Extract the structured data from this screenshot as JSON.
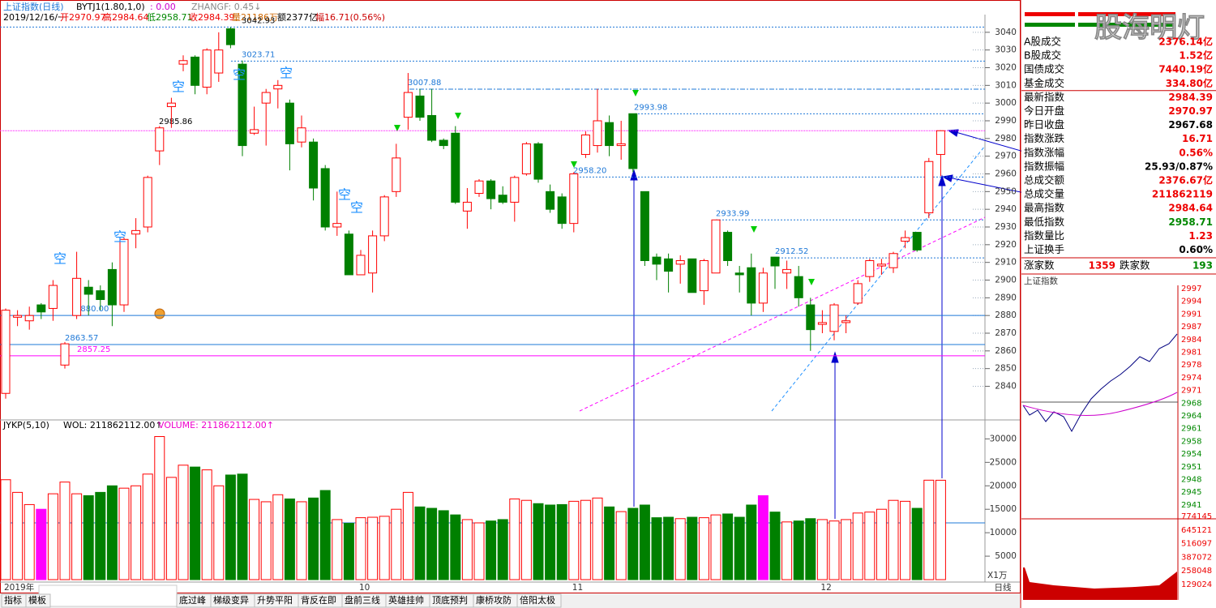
{
  "header": {
    "title": "上证指数(日线)",
    "indicator": "BYTJ1(1.80,1,0)",
    "indicator_value": ": 0.00",
    "zhangf": "ZHANGF: 0.45↓",
    "date": "2019/12/16/一",
    "open": "开2970.97",
    "high": "高2984.64",
    "low": "低2958.71",
    "close": "收2984.39",
    "volume": "量21186万",
    "amount": "额2377亿",
    "change": "幅16.71(0.56%)"
  },
  "volume_header": {
    "indicator": "JYKP(5,10)",
    "wol": "WOL: 211862112.00↑",
    "volume": "VOLUME: 211862112.00↑"
  },
  "chart_data": [
    {
      "type": "candlestick",
      "title": "上证指数",
      "signal_text": "空",
      "up_color": "#ff0000",
      "down_color": "#008000",
      "categories": [
        "2019年",
        null,
        null,
        null,
        null,
        null,
        null,
        null,
        null,
        null,
        null,
        null,
        null,
        null,
        null,
        null,
        null,
        null,
        null,
        null,
        null,
        null,
        null,
        null,
        null,
        null,
        null,
        null,
        null,
        null,
        "10",
        null,
        null,
        null,
        null,
        null,
        null,
        null,
        null,
        null,
        null,
        null,
        null,
        null,
        null,
        null,
        null,
        null,
        "11",
        null,
        null,
        null,
        null,
        null,
        null,
        null,
        null,
        null,
        null,
        null,
        null,
        null,
        null,
        null,
        null,
        null,
        null,
        null,
        null,
        "12",
        null,
        null,
        null,
        null,
        null,
        null,
        null,
        null,
        null,
        null
      ],
      "open": [
        2836,
        2879,
        2877,
        2886,
        2884,
        2852,
        2880,
        2896,
        2894,
        2906,
        2886,
        2926,
        2930,
        2973,
        2998,
        3022,
        3026,
        3009,
        3017,
        3042,
        3022,
        2983,
        3000,
        3008,
        3000,
        2978,
        2978,
        2963,
        2930,
        2926,
        2903,
        2904,
        2925,
        2950,
        2992,
        3004,
        2993,
        2979,
        2983,
        2939,
        2949,
        2956,
        2948,
        2944,
        2960,
        2977,
        2950,
        2947,
        2932,
        2971,
        2976,
        2989,
        2976,
        2994,
        2950,
        2913,
        2912,
        2909,
        2912,
        2894,
        2904,
        2927,
        2904,
        2907,
        2887,
        2913,
        2904,
        2902,
        2886,
        2875,
        2871,
        2876,
        2887,
        2902,
        2908,
        2907,
        2922,
        2927,
        2938,
        2970.97
      ],
      "high": [
        2884,
        2883,
        2885,
        2887,
        2900,
        2865,
        2916,
        2900,
        2897,
        2910,
        2924,
        2935,
        2959,
        2987,
        3003,
        3027,
        3027,
        3031,
        3040,
        3042.93,
        3024,
        2998,
        3008,
        3013,
        3002,
        2993,
        2980,
        2965,
        2950,
        2928,
        2917,
        2928,
        2948,
        2977,
        3017,
        3008,
        3008,
        2980,
        2987,
        2952,
        2957,
        2957,
        2953,
        2959,
        2978,
        2978,
        2954,
        2949,
        2961,
        2984,
        3008,
        2993,
        2990,
        2994,
        2950,
        2915,
        2915,
        2914,
        2912,
        2912,
        2934,
        2928,
        2908,
        2915,
        2907,
        2913,
        2911,
        2908,
        2890,
        2883,
        2887,
        2880,
        2900,
        2912,
        2912,
        2916,
        2928,
        2927,
        2969,
        2984.64
      ],
      "low": [
        2833,
        2874,
        2872,
        2878,
        2877,
        2850,
        2878,
        2880,
        2883,
        2874,
        2882,
        2918,
        2927,
        2965,
        2986,
        3018,
        3005,
        3005,
        3012,
        3031,
        2970,
        2982,
        2976,
        2997,
        2962,
        2975,
        2945,
        2928,
        2925,
        2903,
        2903,
        2893,
        2922,
        2947,
        2985,
        2990,
        2978,
        2974,
        2943,
        2929,
        2947,
        2940,
        2943,
        2933,
        2959,
        2955,
        2938,
        2929,
        2927,
        2969,
        2972,
        2970,
        2968,
        2961,
        2908,
        2900,
        2893,
        2898,
        2893,
        2886,
        2904,
        2908,
        2893,
        2880,
        2882,
        2895,
        2895,
        2885,
        2860,
        2870,
        2866,
        2870,
        2886,
        2899,
        2903,
        2904,
        2918,
        2916,
        2935,
        2958.71
      ],
      "close": [
        2883,
        2880,
        2880,
        2882,
        2897,
        2864,
        2901,
        2892,
        2889,
        2886,
        2923,
        2928,
        2958,
        2986,
        3000,
        3024,
        3010,
        3030,
        3030,
        3033,
        2976,
        2985,
        3006,
        3010,
        2977,
        2986,
        2952,
        2930,
        2932,
        2903,
        2914,
        2925,
        2947,
        2969,
        3006,
        2992,
        2979,
        2976,
        2944,
        2944,
        2956,
        2946,
        2944,
        2958,
        2977,
        2957,
        2940,
        2932,
        2960,
        2982,
        2990,
        2976,
        2977,
        2963,
        2911,
        2909,
        2905,
        2911,
        2893,
        2911,
        2934,
        2911,
        2903,
        2887,
        2904,
        2908,
        2906,
        2890,
        2872,
        2876,
        2886,
        2877,
        2898,
        2911,
        2909,
        2915,
        2924,
        2917,
        2967,
        2984.39
      ],
      "ylim": [
        2821,
        3050
      ],
      "yticks": [
        2840,
        2850,
        2860,
        2870,
        2880,
        2890,
        2900,
        2910,
        2920,
        2930,
        2940,
        2950,
        2960,
        2970,
        2980,
        2990,
        3000,
        3010,
        3020,
        3030,
        3040
      ],
      "levels": [
        {
          "value": 3042.93,
          "label": "3042.93",
          "color": "#000000"
        },
        {
          "value": 3023.71,
          "label": "3023.71",
          "color": "#1e78d7"
        },
        {
          "value": 3007.88,
          "label": "3007.88",
          "color": "#1e78d7"
        },
        {
          "value": 2993.98,
          "label": "2993.98",
          "color": "#1e78d7"
        },
        {
          "value": 2985.86,
          "label": "2985.86",
          "color": "#000000"
        },
        {
          "value": 2958.2,
          "label": "2958.20",
          "color": "#1e78d7"
        },
        {
          "value": 2933.99,
          "label": "2933.99",
          "color": "#1e78d7"
        },
        {
          "value": 2912.52,
          "label": "2912.52",
          "color": "#1e78d7"
        },
        {
          "value": 2880,
          "label": "2880.00",
          "color": "#1e78d7"
        },
        {
          "value": 2863.57,
          "label": "2863.57",
          "color": "#1e78d7"
        },
        {
          "value": 2857.25,
          "label": "2857.25",
          "color": "#ff00ff"
        }
      ]
    },
    {
      "type": "bar",
      "up_color": "#ff0000",
      "down_color": "#008000",
      "highlight": [
        3,
        64
      ],
      "highlight_color": "#ff00ff",
      "unit_label": "X1万",
      "values": [
        21300,
        18600,
        16000,
        15000,
        18300,
        20800,
        18300,
        17900,
        18600,
        20000,
        19500,
        20000,
        22500,
        30500,
        21800,
        24400,
        24000,
        23400,
        20000,
        22300,
        22500,
        17100,
        16600,
        18100,
        17200,
        16600,
        17400,
        19000,
        12800,
        12000,
        13200,
        13300,
        13500,
        15000,
        18600,
        15500,
        15200,
        14700,
        13800,
        12800,
        12100,
        12500,
        12800,
        17200,
        16900,
        16200,
        15900,
        16000,
        16700,
        16900,
        17400,
        15500,
        14500,
        15200,
        15900,
        13200,
        13300,
        13000,
        13300,
        13200,
        13800,
        14000,
        13300,
        15900,
        17900,
        14400,
        12300,
        12500,
        13000,
        12800,
        12500,
        12800,
        14200,
        14400,
        15000,
        16900,
        16700,
        15200,
        21200,
        21186
      ],
      "ylim": [
        0,
        33700
      ],
      "yticks": [
        5000,
        10000,
        15000,
        20000,
        25000,
        30000
      ]
    }
  ],
  "right_panel": {
    "watermark": "股海明灯",
    "rows": [
      [
        "A股成交",
        "2376.14亿"
      ],
      [
        "B股成交",
        "1.52亿"
      ],
      [
        "国债成交",
        "7440.19亿"
      ],
      [
        "基金成交",
        "334.80亿"
      ],
      [
        "最新指数",
        "2984.39"
      ],
      [
        "今日开盘",
        "2970.97"
      ],
      [
        "昨日收盘",
        "2967.68"
      ],
      [
        "指数涨跌",
        "16.71"
      ],
      [
        "指数涨幅",
        "0.56%"
      ],
      [
        "指数振幅",
        "25.93/0.87%"
      ],
      [
        "总成交额",
        "2376.67亿"
      ],
      [
        "总成交量",
        "211862119"
      ],
      [
        "最高指数",
        "2984.64"
      ],
      [
        "最低指数",
        "2958.71"
      ],
      [
        "指数量比",
        "1.23"
      ],
      [
        "上证换手",
        "0.60%"
      ]
    ],
    "up_label": "涨家数",
    "up_count": "1359",
    "down_label": "跌家数",
    "down_count": "193",
    "mini_title": "上证指数",
    "mini_price_labels": [
      "2997",
      "2994",
      "2991",
      "2987",
      "2984",
      "2981",
      "2978",
      "2974",
      "2971",
      "2968",
      "2964",
      "2961",
      "2958",
      "2954",
      "2951",
      "2948",
      "2945",
      "2941"
    ],
    "mini_volume_labels": [
      "774145",
      "645121",
      "516097",
      "387072",
      "258048",
      "129024"
    ]
  },
  "bottom": {
    "period": "日线",
    "tabs": [
      "指标",
      "模板",
      "底过峰",
      "梯级变异",
      "升势平阳",
      "背反在即",
      "盘前三线",
      "英雄挂帅",
      "顶底预判",
      "康桥攻防",
      "倍阳太极"
    ]
  }
}
